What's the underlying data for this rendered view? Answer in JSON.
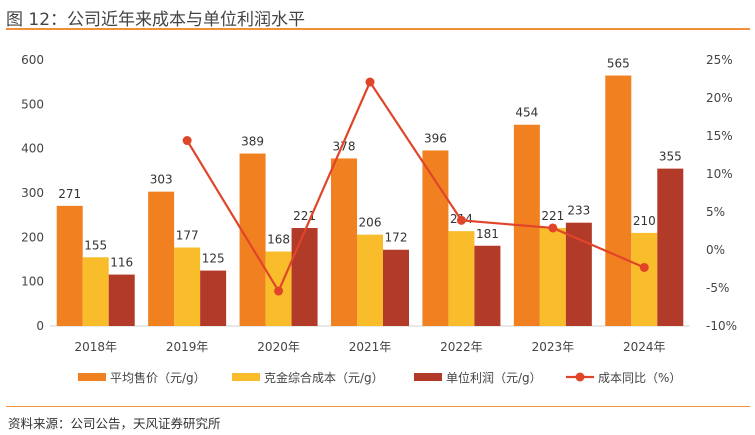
{
  "title": "图 12：公司近年来成本与单位利润水平",
  "source": "资料来源：公司公告，天风证券研究所",
  "chart_data": {
    "type": "bar+line",
    "categories": [
      "2018年",
      "2019年",
      "2020年",
      "2021年",
      "2022年",
      "2023年",
      "2024年"
    ],
    "series": [
      {
        "name": "平均售价（元/g）",
        "type": "bar",
        "axis": "left",
        "color": "#f08020",
        "values": [
          271,
          303,
          389,
          378,
          396,
          454,
          565
        ]
      },
      {
        "name": "克金综合成本（元/g）",
        "type": "bar",
        "axis": "left",
        "color": "#f9bc2a",
        "values": [
          155,
          177,
          168,
          206,
          214,
          221,
          210
        ]
      },
      {
        "name": "单位利润（元/g）",
        "type": "bar",
        "axis": "left",
        "color": "#b23a28",
        "values": [
          116,
          125,
          221,
          172,
          181,
          233,
          355
        ]
      },
      {
        "name": "成本同比（%）",
        "type": "line",
        "axis": "right",
        "color": "#e0452a",
        "values": [
          null,
          14.4,
          -5.4,
          22.1,
          3.9,
          2.9,
          -2.3
        ]
      }
    ],
    "left_axis": {
      "ylim": [
        0,
        600
      ],
      "ticks": [
        "0",
        "100",
        "200",
        "300",
        "400",
        "500",
        "600"
      ]
    },
    "right_axis": {
      "ylim": [
        -10,
        25
      ],
      "ticks": [
        "-10%",
        "-5%",
        "0%",
        "5%",
        "10%",
        "15%",
        "20%",
        "25%"
      ]
    },
    "grid": false,
    "legend": "bottom"
  }
}
